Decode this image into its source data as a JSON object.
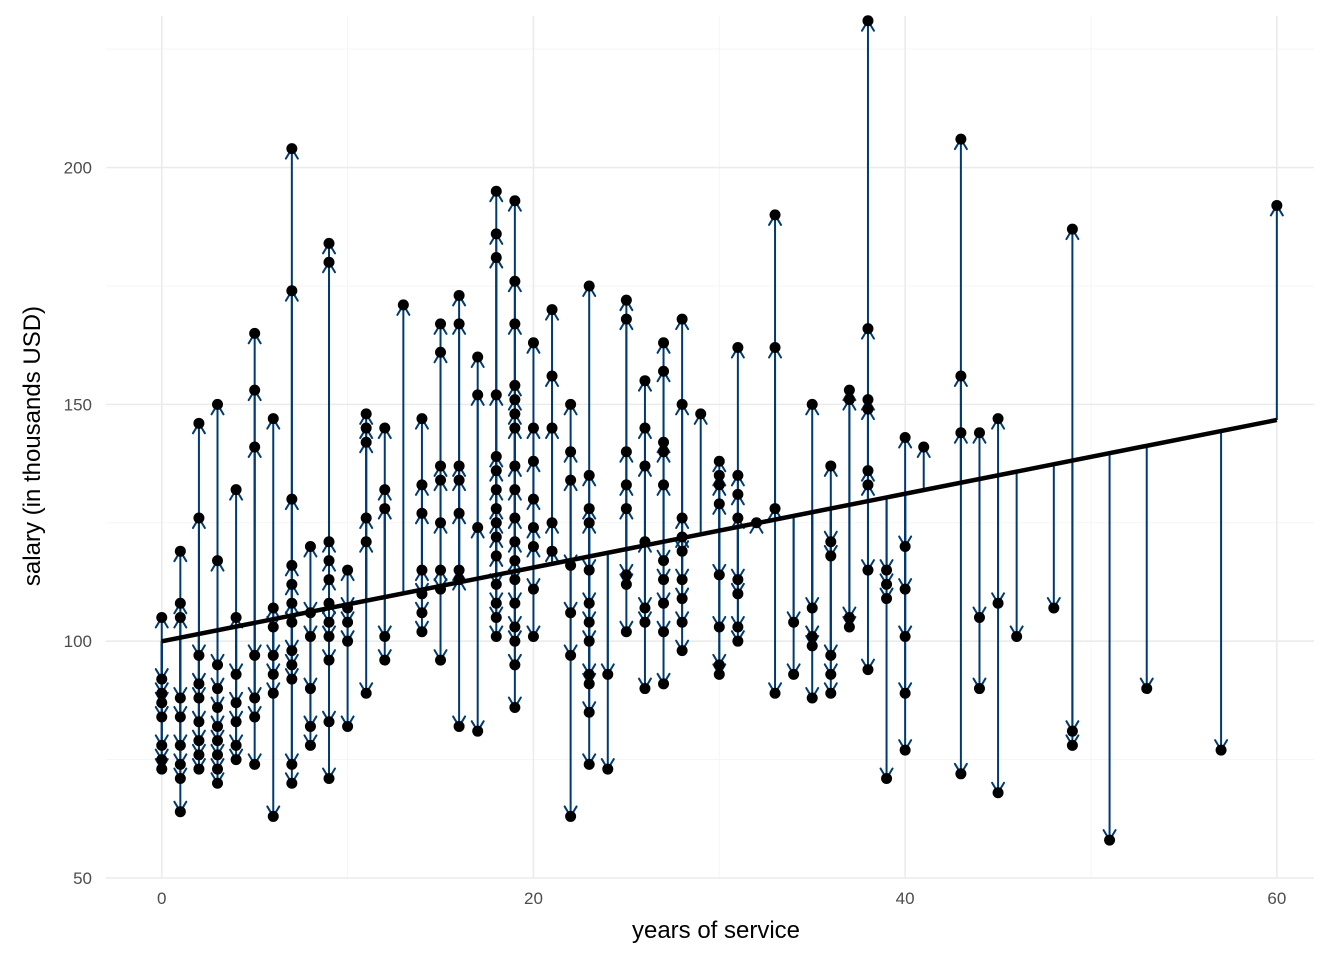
{
  "chart_data": {
    "type": "scatter",
    "title": "",
    "xlabel": "years of service",
    "ylabel": "salary (in thousands USD)",
    "xlim": [
      -3,
      62
    ],
    "ylim": [
      50,
      232
    ],
    "x_ticks": [
      0,
      20,
      40,
      60
    ],
    "y_ticks": [
      50,
      100,
      150,
      200
    ],
    "grid": true,
    "regression_line": {
      "intercept": 99.97,
      "slope": 0.779
    },
    "colors": {
      "points": "#000000",
      "residual_arrows": "#003a70",
      "fit_line": "#000000"
    },
    "points": [
      {
        "x": 0,
        "y": 105
      },
      {
        "x": 0,
        "y": 92
      },
      {
        "x": 0,
        "y": 89
      },
      {
        "x": 0,
        "y": 87
      },
      {
        "x": 0,
        "y": 84
      },
      {
        "x": 0,
        "y": 78
      },
      {
        "x": 0,
        "y": 75
      },
      {
        "x": 0,
        "y": 73
      },
      {
        "x": 1,
        "y": 119
      },
      {
        "x": 1,
        "y": 108
      },
      {
        "x": 1,
        "y": 105
      },
      {
        "x": 1,
        "y": 88
      },
      {
        "x": 1,
        "y": 84
      },
      {
        "x": 1,
        "y": 78
      },
      {
        "x": 1,
        "y": 74
      },
      {
        "x": 1,
        "y": 71
      },
      {
        "x": 1,
        "y": 64
      },
      {
        "x": 2,
        "y": 146
      },
      {
        "x": 2,
        "y": 126
      },
      {
        "x": 2,
        "y": 97
      },
      {
        "x": 2,
        "y": 91
      },
      {
        "x": 2,
        "y": 88
      },
      {
        "x": 2,
        "y": 83
      },
      {
        "x": 2,
        "y": 79
      },
      {
        "x": 2,
        "y": 76
      },
      {
        "x": 2,
        "y": 73
      },
      {
        "x": 3,
        "y": 150
      },
      {
        "x": 3,
        "y": 117
      },
      {
        "x": 3,
        "y": 95
      },
      {
        "x": 3,
        "y": 90
      },
      {
        "x": 3,
        "y": 86
      },
      {
        "x": 3,
        "y": 82
      },
      {
        "x": 3,
        "y": 79
      },
      {
        "x": 3,
        "y": 76
      },
      {
        "x": 3,
        "y": 73
      },
      {
        "x": 3,
        "y": 70
      },
      {
        "x": 4,
        "y": 132
      },
      {
        "x": 4,
        "y": 105
      },
      {
        "x": 4,
        "y": 93
      },
      {
        "x": 4,
        "y": 87
      },
      {
        "x": 4,
        "y": 83
      },
      {
        "x": 4,
        "y": 78
      },
      {
        "x": 4,
        "y": 75
      },
      {
        "x": 5,
        "y": 165
      },
      {
        "x": 5,
        "y": 153
      },
      {
        "x": 5,
        "y": 141
      },
      {
        "x": 5,
        "y": 97
      },
      {
        "x": 5,
        "y": 88
      },
      {
        "x": 5,
        "y": 84
      },
      {
        "x": 5,
        "y": 74
      },
      {
        "x": 6,
        "y": 147
      },
      {
        "x": 6,
        "y": 107
      },
      {
        "x": 6,
        "y": 103
      },
      {
        "x": 6,
        "y": 97
      },
      {
        "x": 6,
        "y": 93
      },
      {
        "x": 6,
        "y": 89
      },
      {
        "x": 6,
        "y": 63
      },
      {
        "x": 7,
        "y": 204
      },
      {
        "x": 7,
        "y": 174
      },
      {
        "x": 7,
        "y": 130
      },
      {
        "x": 7,
        "y": 116
      },
      {
        "x": 7,
        "y": 112
      },
      {
        "x": 7,
        "y": 108
      },
      {
        "x": 7,
        "y": 104
      },
      {
        "x": 7,
        "y": 98
      },
      {
        "x": 7,
        "y": 95
      },
      {
        "x": 7,
        "y": 92
      },
      {
        "x": 7,
        "y": 74
      },
      {
        "x": 7,
        "y": 70
      },
      {
        "x": 8,
        "y": 120
      },
      {
        "x": 8,
        "y": 106
      },
      {
        "x": 8,
        "y": 101
      },
      {
        "x": 8,
        "y": 90
      },
      {
        "x": 8,
        "y": 82
      },
      {
        "x": 8,
        "y": 78
      },
      {
        "x": 9,
        "y": 184
      },
      {
        "x": 9,
        "y": 180
      },
      {
        "x": 9,
        "y": 121
      },
      {
        "x": 9,
        "y": 117
      },
      {
        "x": 9,
        "y": 113
      },
      {
        "x": 9,
        "y": 108
      },
      {
        "x": 9,
        "y": 104
      },
      {
        "x": 9,
        "y": 101
      },
      {
        "x": 9,
        "y": 96
      },
      {
        "x": 9,
        "y": 83
      },
      {
        "x": 9,
        "y": 71
      },
      {
        "x": 10,
        "y": 115
      },
      {
        "x": 10,
        "y": 107
      },
      {
        "x": 10,
        "y": 104
      },
      {
        "x": 10,
        "y": 100
      },
      {
        "x": 10,
        "y": 82
      },
      {
        "x": 11,
        "y": 148
      },
      {
        "x": 11,
        "y": 145
      },
      {
        "x": 11,
        "y": 142
      },
      {
        "x": 11,
        "y": 126
      },
      {
        "x": 11,
        "y": 121
      },
      {
        "x": 11,
        "y": 89
      },
      {
        "x": 12,
        "y": 145
      },
      {
        "x": 12,
        "y": 132
      },
      {
        "x": 12,
        "y": 128
      },
      {
        "x": 12,
        "y": 101
      },
      {
        "x": 12,
        "y": 96
      },
      {
        "x": 13,
        "y": 171
      },
      {
        "x": 14,
        "y": 147
      },
      {
        "x": 14,
        "y": 133
      },
      {
        "x": 14,
        "y": 127
      },
      {
        "x": 14,
        "y": 115
      },
      {
        "x": 14,
        "y": 110
      },
      {
        "x": 14,
        "y": 106
      },
      {
        "x": 14,
        "y": 102
      },
      {
        "x": 15,
        "y": 167
      },
      {
        "x": 15,
        "y": 161
      },
      {
        "x": 15,
        "y": 137
      },
      {
        "x": 15,
        "y": 134
      },
      {
        "x": 15,
        "y": 125
      },
      {
        "x": 15,
        "y": 115
      },
      {
        "x": 15,
        "y": 111
      },
      {
        "x": 15,
        "y": 96
      },
      {
        "x": 16,
        "y": 173
      },
      {
        "x": 16,
        "y": 167
      },
      {
        "x": 16,
        "y": 137
      },
      {
        "x": 16,
        "y": 134
      },
      {
        "x": 16,
        "y": 127
      },
      {
        "x": 16,
        "y": 115
      },
      {
        "x": 16,
        "y": 113
      },
      {
        "x": 16,
        "y": 82
      },
      {
        "x": 17,
        "y": 160
      },
      {
        "x": 17,
        "y": 152
      },
      {
        "x": 17,
        "y": 124
      },
      {
        "x": 17,
        "y": 81
      },
      {
        "x": 18,
        "y": 195
      },
      {
        "x": 18,
        "y": 186
      },
      {
        "x": 18,
        "y": 181
      },
      {
        "x": 18,
        "y": 152
      },
      {
        "x": 18,
        "y": 139
      },
      {
        "x": 18,
        "y": 136
      },
      {
        "x": 18,
        "y": 132
      },
      {
        "x": 18,
        "y": 128
      },
      {
        "x": 18,
        "y": 125
      },
      {
        "x": 18,
        "y": 122
      },
      {
        "x": 18,
        "y": 118
      },
      {
        "x": 18,
        "y": 112
      },
      {
        "x": 18,
        "y": 108
      },
      {
        "x": 18,
        "y": 105
      },
      {
        "x": 18,
        "y": 101
      },
      {
        "x": 19,
        "y": 193
      },
      {
        "x": 19,
        "y": 176
      },
      {
        "x": 19,
        "y": 167
      },
      {
        "x": 19,
        "y": 154
      },
      {
        "x": 19,
        "y": 151
      },
      {
        "x": 19,
        "y": 148
      },
      {
        "x": 19,
        "y": 145
      },
      {
        "x": 19,
        "y": 137
      },
      {
        "x": 19,
        "y": 132
      },
      {
        "x": 19,
        "y": 126
      },
      {
        "x": 19,
        "y": 121
      },
      {
        "x": 19,
        "y": 117
      },
      {
        "x": 19,
        "y": 113
      },
      {
        "x": 19,
        "y": 108
      },
      {
        "x": 19,
        "y": 103
      },
      {
        "x": 19,
        "y": 100
      },
      {
        "x": 19,
        "y": 95
      },
      {
        "x": 19,
        "y": 86
      },
      {
        "x": 20,
        "y": 163
      },
      {
        "x": 20,
        "y": 145
      },
      {
        "x": 20,
        "y": 138
      },
      {
        "x": 20,
        "y": 130
      },
      {
        "x": 20,
        "y": 124
      },
      {
        "x": 20,
        "y": 120
      },
      {
        "x": 20,
        "y": 111
      },
      {
        "x": 20,
        "y": 101
      },
      {
        "x": 21,
        "y": 170
      },
      {
        "x": 21,
        "y": 156
      },
      {
        "x": 21,
        "y": 145
      },
      {
        "x": 21,
        "y": 125
      },
      {
        "x": 21,
        "y": 119
      },
      {
        "x": 22,
        "y": 150
      },
      {
        "x": 22,
        "y": 140
      },
      {
        "x": 22,
        "y": 134
      },
      {
        "x": 22,
        "y": 116
      },
      {
        "x": 22,
        "y": 106
      },
      {
        "x": 22,
        "y": 97
      },
      {
        "x": 22,
        "y": 63
      },
      {
        "x": 23,
        "y": 175
      },
      {
        "x": 23,
        "y": 135
      },
      {
        "x": 23,
        "y": 128
      },
      {
        "x": 23,
        "y": 125
      },
      {
        "x": 23,
        "y": 115
      },
      {
        "x": 23,
        "y": 108
      },
      {
        "x": 23,
        "y": 104
      },
      {
        "x": 23,
        "y": 100
      },
      {
        "x": 23,
        "y": 93
      },
      {
        "x": 23,
        "y": 91
      },
      {
        "x": 23,
        "y": 85
      },
      {
        "x": 23,
        "y": 74
      },
      {
        "x": 24,
        "y": 93
      },
      {
        "x": 24,
        "y": 73
      },
      {
        "x": 25,
        "y": 172
      },
      {
        "x": 25,
        "y": 168
      },
      {
        "x": 25,
        "y": 140
      },
      {
        "x": 25,
        "y": 133
      },
      {
        "x": 25,
        "y": 128
      },
      {
        "x": 25,
        "y": 114
      },
      {
        "x": 25,
        "y": 112
      },
      {
        "x": 25,
        "y": 102
      },
      {
        "x": 26,
        "y": 155
      },
      {
        "x": 26,
        "y": 145
      },
      {
        "x": 26,
        "y": 137
      },
      {
        "x": 26,
        "y": 121
      },
      {
        "x": 26,
        "y": 107
      },
      {
        "x": 26,
        "y": 104
      },
      {
        "x": 26,
        "y": 90
      },
      {
        "x": 27,
        "y": 163
      },
      {
        "x": 27,
        "y": 157
      },
      {
        "x": 27,
        "y": 142
      },
      {
        "x": 27,
        "y": 140
      },
      {
        "x": 27,
        "y": 133
      },
      {
        "x": 27,
        "y": 117
      },
      {
        "x": 27,
        "y": 113
      },
      {
        "x": 27,
        "y": 108
      },
      {
        "x": 27,
        "y": 102
      },
      {
        "x": 27,
        "y": 91
      },
      {
        "x": 28,
        "y": 168
      },
      {
        "x": 28,
        "y": 150
      },
      {
        "x": 28,
        "y": 126
      },
      {
        "x": 28,
        "y": 122
      },
      {
        "x": 28,
        "y": 119
      },
      {
        "x": 28,
        "y": 113
      },
      {
        "x": 28,
        "y": 109
      },
      {
        "x": 28,
        "y": 104
      },
      {
        "x": 28,
        "y": 98
      },
      {
        "x": 29,
        "y": 148
      },
      {
        "x": 30,
        "y": 138
      },
      {
        "x": 30,
        "y": 135
      },
      {
        "x": 30,
        "y": 133
      },
      {
        "x": 30,
        "y": 129
      },
      {
        "x": 30,
        "y": 114
      },
      {
        "x": 30,
        "y": 103
      },
      {
        "x": 30,
        "y": 95
      },
      {
        "x": 30,
        "y": 93
      },
      {
        "x": 31,
        "y": 162
      },
      {
        "x": 31,
        "y": 135
      },
      {
        "x": 31,
        "y": 131
      },
      {
        "x": 31,
        "y": 126
      },
      {
        "x": 31,
        "y": 113
      },
      {
        "x": 31,
        "y": 110
      },
      {
        "x": 31,
        "y": 103
      },
      {
        "x": 31,
        "y": 100
      },
      {
        "x": 32,
        "y": 125
      },
      {
        "x": 33,
        "y": 190
      },
      {
        "x": 33,
        "y": 162
      },
      {
        "x": 33,
        "y": 128
      },
      {
        "x": 33,
        "y": 89
      },
      {
        "x": 34,
        "y": 104
      },
      {
        "x": 34,
        "y": 93
      },
      {
        "x": 35,
        "y": 150
      },
      {
        "x": 35,
        "y": 107
      },
      {
        "x": 35,
        "y": 101
      },
      {
        "x": 35,
        "y": 99
      },
      {
        "x": 35,
        "y": 88
      },
      {
        "x": 36,
        "y": 137
      },
      {
        "x": 36,
        "y": 121
      },
      {
        "x": 36,
        "y": 118
      },
      {
        "x": 36,
        "y": 97
      },
      {
        "x": 36,
        "y": 93
      },
      {
        "x": 36,
        "y": 89
      },
      {
        "x": 37,
        "y": 153
      },
      {
        "x": 37,
        "y": 151
      },
      {
        "x": 37,
        "y": 105
      },
      {
        "x": 37,
        "y": 103
      },
      {
        "x": 38,
        "y": 231
      },
      {
        "x": 38,
        "y": 166
      },
      {
        "x": 38,
        "y": 151
      },
      {
        "x": 38,
        "y": 149
      },
      {
        "x": 38,
        "y": 136
      },
      {
        "x": 38,
        "y": 133
      },
      {
        "x": 38,
        "y": 115
      },
      {
        "x": 38,
        "y": 94
      },
      {
        "x": 39,
        "y": 115
      },
      {
        "x": 39,
        "y": 112
      },
      {
        "x": 39,
        "y": 109
      },
      {
        "x": 39,
        "y": 71
      },
      {
        "x": 40,
        "y": 143
      },
      {
        "x": 40,
        "y": 120
      },
      {
        "x": 40,
        "y": 111
      },
      {
        "x": 40,
        "y": 101
      },
      {
        "x": 40,
        "y": 89
      },
      {
        "x": 40,
        "y": 77
      },
      {
        "x": 41,
        "y": 141
      },
      {
        "x": 43,
        "y": 206
      },
      {
        "x": 43,
        "y": 156
      },
      {
        "x": 43,
        "y": 144
      },
      {
        "x": 43,
        "y": 72
      },
      {
        "x": 44,
        "y": 144
      },
      {
        "x": 44,
        "y": 105
      },
      {
        "x": 44,
        "y": 90
      },
      {
        "x": 45,
        "y": 147
      },
      {
        "x": 45,
        "y": 108
      },
      {
        "x": 45,
        "y": 68
      },
      {
        "x": 46,
        "y": 101
      },
      {
        "x": 48,
        "y": 107
      },
      {
        "x": 49,
        "y": 187
      },
      {
        "x": 49,
        "y": 81
      },
      {
        "x": 49,
        "y": 78
      },
      {
        "x": 51,
        "y": 58
      },
      {
        "x": 53,
        "y": 90
      },
      {
        "x": 57,
        "y": 77
      },
      {
        "x": 60,
        "y": 192
      }
    ]
  }
}
